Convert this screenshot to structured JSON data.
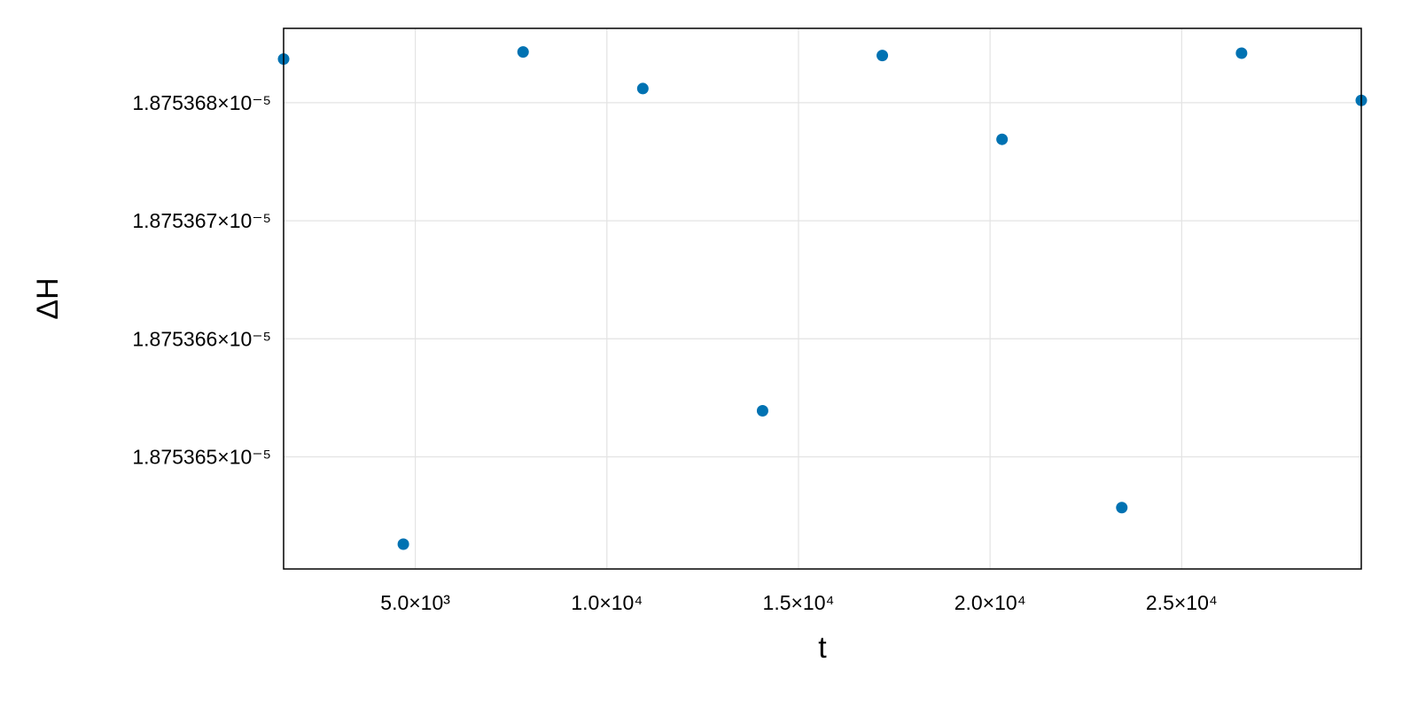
{
  "chart_data": {
    "type": "scatter",
    "x_label": "t",
    "y_label": "ΔH",
    "x": [
      1562.5,
      4687.5,
      7812.5,
      10937.5,
      14062.5,
      17187.5,
      20312.5,
      23437.5,
      26562.5,
      29687.5
    ],
    "series": [
      {
        "color": "#0072b2",
        "values": [
          1.87536837e-05,
          1.87536426e-05,
          1.87536843e-05,
          1.87536812e-05,
          1.87536539e-05,
          1.8753684e-05,
          1.87536769e-05,
          1.87536457e-05,
          1.87536842e-05,
          1.87536802e-05
        ]
      }
    ],
    "xlim": [
      1562.5,
      29687.5
    ],
    "ylim": [
      1.87536405e-05,
      1.87536863e-05
    ],
    "xticks": [
      {
        "value": 5000,
        "label": "5.0×10³"
      },
      {
        "value": 10000,
        "label": "1.0×10⁴"
      },
      {
        "value": 15000,
        "label": "1.5×10⁴"
      },
      {
        "value": 20000,
        "label": "2.0×10⁴"
      },
      {
        "value": 25000,
        "label": "2.5×10⁴"
      }
    ],
    "yticks": [
      {
        "value": 1.875365e-05,
        "label": "1.875365×10⁻⁵"
      },
      {
        "value": 1.875366e-05,
        "label": "1.875366×10⁻⁵"
      },
      {
        "value": 1.875367e-05,
        "label": "1.875367×10⁻⁵"
      },
      {
        "value": 1.875368e-05,
        "label": "1.875368×10⁻⁵"
      }
    ],
    "grid": true
  }
}
